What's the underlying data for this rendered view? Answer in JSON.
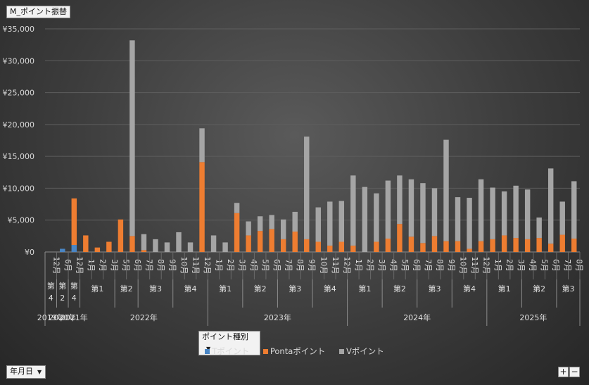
{
  "chart_title": "M_ポイント振替",
  "legend_filter_label": "ポイント種別",
  "row_field_label": "年月日",
  "plus_label": "+",
  "minus_label": "−",
  "colors": {
    "t": "#4a86c5",
    "ponta": "#ee7d31",
    "v": "#a5a5a5"
  },
  "chart_data": {
    "type": "bar",
    "stacked": true,
    "ylim": [
      0,
      35000
    ],
    "y_ticks": [
      "¥0",
      "¥5,000",
      "¥10,000",
      "¥15,000",
      "¥20,000",
      "¥25,000",
      "¥30,000",
      "¥35,000"
    ],
    "legend": [
      "Tポイント",
      "Pontaポイント",
      "Vポイント"
    ],
    "legend_position": "bottom",
    "months": [
      "12月",
      "6月",
      "12月",
      "1月",
      "2月",
      "3月",
      "5月",
      "6月",
      "7月",
      "8月",
      "9月",
      "10月",
      "11月",
      "12月",
      "1月",
      "2月",
      "3月",
      "4月",
      "5月",
      "6月",
      "7月",
      "8月",
      "9月",
      "10月",
      "11月",
      "12月",
      "1月",
      "2月",
      "3月",
      "4月",
      "5月",
      "6月",
      "7月",
      "8月",
      "9月",
      "10月",
      "11月",
      "12月",
      "1月",
      "2月",
      "3月",
      "4月",
      "5月",
      "6月",
      "7月",
      "8月"
    ],
    "quarters": [
      {
        "label": "第",
        "label2": "4",
        "span": 1
      },
      {
        "label": "第",
        "label2": "2",
        "span": 1
      },
      {
        "label": "第",
        "label2": "4",
        "span": 1
      },
      {
        "label": "第1",
        "span": 3
      },
      {
        "label": "第2",
        "span": 2
      },
      {
        "label": "第3",
        "span": 3
      },
      {
        "label": "第4",
        "span": 3
      },
      {
        "label": "第1",
        "span": 3
      },
      {
        "label": "第2",
        "span": 3
      },
      {
        "label": "第3",
        "span": 3
      },
      {
        "label": "第4",
        "span": 3
      },
      {
        "label": "第1",
        "span": 3
      },
      {
        "label": "第2",
        "span": 3
      },
      {
        "label": "第3",
        "span": 3
      },
      {
        "label": "第4",
        "span": 3
      },
      {
        "label": "第1",
        "span": 3
      },
      {
        "label": "第2",
        "span": 3
      },
      {
        "label": "第3",
        "span": 2
      }
    ],
    "years": [
      {
        "label": "2019年",
        "span": 1
      },
      {
        "label": "2020年",
        "span": 1
      },
      {
        "label": "2021年",
        "span": 1
      },
      {
        "label": "2022年",
        "span": 11
      },
      {
        "label": "2023年",
        "span": 12
      },
      {
        "label": "2024年",
        "span": 12
      },
      {
        "label": "2025年",
        "span": 8
      }
    ],
    "series": [
      {
        "name": "Tポイント",
        "values": [
          0,
          500,
          1100,
          0,
          0,
          0,
          0,
          0,
          0,
          0,
          0,
          0,
          0,
          0,
          0,
          0,
          0,
          0,
          0,
          0,
          0,
          0,
          0,
          0,
          0,
          0,
          0,
          0,
          0,
          0,
          0,
          0,
          0,
          0,
          0,
          0,
          0,
          0,
          0,
          0,
          0,
          0,
          0,
          0,
          0,
          0
        ]
      },
      {
        "name": "Pontaポイント",
        "values": [
          0,
          0,
          7300,
          2600,
          700,
          1600,
          5100,
          2500,
          300,
          0,
          0,
          0,
          0,
          14100,
          0,
          0,
          6100,
          2600,
          3300,
          3600,
          2000,
          3200,
          2000,
          1600,
          1000,
          1600,
          1000,
          0,
          1600,
          2100,
          4400,
          2400,
          1400,
          2500,
          1700,
          1700,
          500,
          1700,
          2000,
          2600,
          2200,
          2000,
          2200,
          1300,
          2700,
          2100
        ]
      },
      {
        "name": "Vポイント",
        "values": [
          0,
          0,
          0,
          0,
          0,
          0,
          0,
          30700,
          2500,
          2000,
          1500,
          3100,
          1500,
          5300,
          2600,
          1500,
          1600,
          2200,
          2300,
          2200,
          3100,
          3100,
          16100,
          5400,
          6900,
          6400,
          11000,
          10200,
          7600,
          9100,
          7600,
          9000,
          9400,
          7500,
          15900,
          6900,
          8000,
          9700,
          8100,
          6900,
          8200,
          7800,
          3200,
          11800,
          5200,
          9000
        ]
      }
    ]
  }
}
